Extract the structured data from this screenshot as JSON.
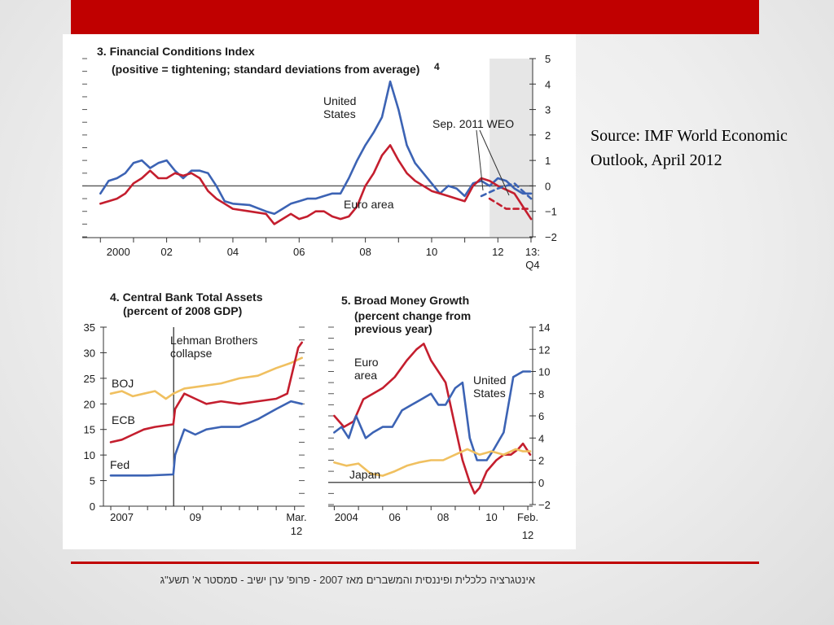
{
  "slide": {
    "source_caption": "Source: IMF World Economic Outlook, April 2012",
    "footer": "אינטגרציה כלכלית ופיננסית והמשברים מאז 2007 - פרופ' ערן ישיב - סמסטר א' תשע\"ג"
  },
  "colors": {
    "blue": "#3c63b4",
    "red": "#c41e2e",
    "yellow": "#f0c060",
    "accent_bar": "#c00000",
    "shade": "#e6e6e6"
  },
  "chart_data": [
    {
      "id": "fci",
      "type": "line",
      "title": "3. Financial Conditions Index",
      "subtitle": "(positive = tightening; standard deviations from average)",
      "footnote_mark": "4",
      "x_ticks": [
        "2000",
        "02",
        "04",
        "06",
        "08",
        "10",
        "12",
        "13:"
      ],
      "x_tick_sub": "Q4",
      "ylim": [
        -2,
        5
      ],
      "y_ticks": [
        "5",
        "4",
        "3",
        "2",
        "1",
        "0",
        "−1",
        "−2"
      ],
      "shaded_label": "Sep. 2011 WEO",
      "series": [
        {
          "name": "United States",
          "label": "United\nStates",
          "color": "blue",
          "style": "solid",
          "points": [
            [
              2000,
              -0.3
            ],
            [
              2000.25,
              0.2
            ],
            [
              2000.5,
              0.3
            ],
            [
              2000.75,
              0.5
            ],
            [
              2001,
              0.9
            ],
            [
              2001.25,
              1.0
            ],
            [
              2001.5,
              0.7
            ],
            [
              2001.75,
              0.9
            ],
            [
              2002,
              1.0
            ],
            [
              2002.25,
              0.6
            ],
            [
              2002.5,
              0.3
            ],
            [
              2002.75,
              0.6
            ],
            [
              2003,
              0.6
            ],
            [
              2003.25,
              0.5
            ],
            [
              2003.5,
              0.0
            ],
            [
              2003.75,
              -0.6
            ],
            [
              2004,
              -0.7
            ],
            [
              2004.5,
              -0.75
            ],
            [
              2005,
              -1.0
            ],
            [
              2005.25,
              -1.1
            ],
            [
              2005.5,
              -0.9
            ],
            [
              2005.75,
              -0.7
            ],
            [
              2006,
              -0.6
            ],
            [
              2006.25,
              -0.5
            ],
            [
              2006.5,
              -0.5
            ],
            [
              2006.75,
              -0.4
            ],
            [
              2007,
              -0.3
            ],
            [
              2007.25,
              -0.3
            ],
            [
              2007.5,
              0.3
            ],
            [
              2007.75,
              1.0
            ],
            [
              2008,
              1.6
            ],
            [
              2008.25,
              2.1
            ],
            [
              2008.5,
              2.7
            ],
            [
              2008.75,
              4.1
            ],
            [
              2009,
              3.0
            ],
            [
              2009.25,
              1.6
            ],
            [
              2009.5,
              0.9
            ],
            [
              2009.75,
              0.5
            ],
            [
              2010,
              0.1
            ],
            [
              2010.25,
              -0.3
            ],
            [
              2010.5,
              0.0
            ],
            [
              2010.75,
              -0.1
            ],
            [
              2011,
              -0.4
            ],
            [
              2011.25,
              0.1
            ],
            [
              2011.5,
              0.2
            ],
            [
              2011.75,
              0.0
            ],
            [
              2012,
              0.3
            ],
            [
              2012.25,
              0.2
            ],
            [
              2012.5,
              -0.1
            ],
            [
              2012.75,
              -0.3
            ],
            [
              2013,
              -0.3
            ]
          ]
        },
        {
          "name": "Euro area",
          "label": "Euro area",
          "color": "red",
          "style": "solid",
          "points": [
            [
              2000,
              -0.7
            ],
            [
              2000.25,
              -0.6
            ],
            [
              2000.5,
              -0.5
            ],
            [
              2000.75,
              -0.3
            ],
            [
              2001,
              0.1
            ],
            [
              2001.25,
              0.3
            ],
            [
              2001.5,
              0.6
            ],
            [
              2001.75,
              0.3
            ],
            [
              2002,
              0.3
            ],
            [
              2002.25,
              0.5
            ],
            [
              2002.5,
              0.4
            ],
            [
              2002.75,
              0.5
            ],
            [
              2003,
              0.3
            ],
            [
              2003.25,
              -0.2
            ],
            [
              2003.5,
              -0.5
            ],
            [
              2003.75,
              -0.7
            ],
            [
              2004,
              -0.9
            ],
            [
              2004.5,
              -1.0
            ],
            [
              2005,
              -1.1
            ],
            [
              2005.25,
              -1.5
            ],
            [
              2005.5,
              -1.3
            ],
            [
              2005.75,
              -1.1
            ],
            [
              2006,
              -1.3
            ],
            [
              2006.25,
              -1.2
            ],
            [
              2006.5,
              -1.0
            ],
            [
              2006.75,
              -1.0
            ],
            [
              2007,
              -1.2
            ],
            [
              2007.25,
              -1.3
            ],
            [
              2007.5,
              -1.2
            ],
            [
              2007.75,
              -0.8
            ],
            [
              2008,
              0.0
            ],
            [
              2008.25,
              0.5
            ],
            [
              2008.5,
              1.2
            ],
            [
              2008.75,
              1.6
            ],
            [
              2009,
              1.0
            ],
            [
              2009.25,
              0.5
            ],
            [
              2009.5,
              0.2
            ],
            [
              2009.75,
              0.0
            ],
            [
              2010,
              -0.2
            ],
            [
              2010.25,
              -0.3
            ],
            [
              2010.5,
              -0.4
            ],
            [
              2010.75,
              -0.5
            ],
            [
              2011,
              -0.6
            ],
            [
              2011.25,
              0.0
            ],
            [
              2011.5,
              0.3
            ],
            [
              2011.75,
              0.2
            ],
            [
              2012,
              0.0
            ],
            [
              2012.5,
              -0.3
            ],
            [
              2013,
              -1.3
            ]
          ]
        },
        {
          "name": "Sep. 2011 WEO (United States)",
          "color": "blue",
          "style": "dashed",
          "points": [
            [
              2011.5,
              -0.4
            ],
            [
              2012,
              -0.1
            ],
            [
              2012.5,
              0.1
            ],
            [
              2012.75,
              -0.2
            ],
            [
              2013,
              -0.5
            ]
          ]
        },
        {
          "name": "Sep. 2011 WEO (Euro area)",
          "color": "red",
          "style": "dashed",
          "points": [
            [
              2011.75,
              -0.5
            ],
            [
              2012,
              -0.7
            ],
            [
              2012.25,
              -0.9
            ],
            [
              2012.5,
              -0.9
            ],
            [
              2013,
              -0.9
            ]
          ]
        }
      ]
    },
    {
      "id": "cbassets",
      "type": "line",
      "title": "4. Central Bank Total Assets",
      "subtitle": "(percent of 2008 GDP)",
      "x_ticks": [
        "2007",
        "09",
        "Mar."
      ],
      "x_tick_sub": "12",
      "ylim": [
        0,
        35
      ],
      "y_ticks": [
        "35",
        "30",
        "25",
        "20",
        "15",
        "10",
        "5",
        "0"
      ],
      "event_label": "Lehman Brothers\ncollapse",
      "series": [
        {
          "name": "BOJ",
          "label": "BOJ",
          "color": "yellow",
          "points": [
            [
              2007,
              22
            ],
            [
              2007.3,
              22.5
            ],
            [
              2007.6,
              21.5
            ],
            [
              2007.9,
              22
            ],
            [
              2008.2,
              22.5
            ],
            [
              2008.5,
              21
            ],
            [
              2008.7,
              22
            ],
            [
              2009,
              23
            ],
            [
              2009.5,
              23.5
            ],
            [
              2010,
              24
            ],
            [
              2010.5,
              25
            ],
            [
              2011,
              25.5
            ],
            [
              2011.5,
              27
            ],
            [
              2011.9,
              28
            ],
            [
              2012.2,
              29
            ]
          ]
        },
        {
          "name": "ECB",
          "label": "ECB",
          "color": "red",
          "points": [
            [
              2007,
              12.5
            ],
            [
              2007.3,
              13
            ],
            [
              2007.6,
              14
            ],
            [
              2007.9,
              15
            ],
            [
              2008.2,
              15.5
            ],
            [
              2008.7,
              16
            ],
            [
              2008.75,
              19
            ],
            [
              2009,
              22
            ],
            [
              2009.3,
              21
            ],
            [
              2009.6,
              20
            ],
            [
              2010,
              20.5
            ],
            [
              2010.5,
              20
            ],
            [
              2011,
              20.5
            ],
            [
              2011.5,
              21
            ],
            [
              2011.8,
              22
            ],
            [
              2012.1,
              31
            ],
            [
              2012.2,
              32
            ]
          ]
        },
        {
          "name": "Fed",
          "label": "Fed",
          "color": "blue",
          "points": [
            [
              2007,
              6
            ],
            [
              2007.5,
              6
            ],
            [
              2008,
              6
            ],
            [
              2008.7,
              6.2
            ],
            [
              2008.75,
              10
            ],
            [
              2009,
              15
            ],
            [
              2009.3,
              14
            ],
            [
              2009.6,
              15
            ],
            [
              2010,
              15.5
            ],
            [
              2010.5,
              15.5
            ],
            [
              2011,
              17
            ],
            [
              2011.5,
              19
            ],
            [
              2011.9,
              20.5
            ],
            [
              2012.2,
              20
            ]
          ]
        }
      ]
    },
    {
      "id": "moneygrowth",
      "type": "line",
      "title": "5. Broad Money Growth",
      "subtitle": "(percent change from\nprevious year)",
      "x_ticks": [
        "2004",
        "06",
        "08",
        "10",
        "Feb."
      ],
      "x_tick_sub": "12",
      "ylim": [
        -2,
        14
      ],
      "y_ticks": [
        "14",
        "12",
        "10",
        "8",
        "6",
        "4",
        "2",
        "0",
        "−2"
      ],
      "series": [
        {
          "name": "Euro area",
          "label": "Euro\narea",
          "color": "red",
          "points": [
            [
              2004,
              6
            ],
            [
              2004.4,
              5
            ],
            [
              2004.8,
              5.5
            ],
            [
              2005.2,
              7.5
            ],
            [
              2005.6,
              8
            ],
            [
              2006,
              8.5
            ],
            [
              2006.5,
              9.5
            ],
            [
              2007,
              11
            ],
            [
              2007.4,
              12
            ],
            [
              2007.7,
              12.5
            ],
            [
              2008,
              11
            ],
            [
              2008.3,
              10
            ],
            [
              2008.6,
              9
            ],
            [
              2009,
              5
            ],
            [
              2009.3,
              2
            ],
            [
              2009.6,
              0
            ],
            [
              2009.8,
              -1
            ],
            [
              2010,
              -0.5
            ],
            [
              2010.3,
              1
            ],
            [
              2010.7,
              2
            ],
            [
              2011,
              2.5
            ],
            [
              2011.3,
              2.5
            ],
            [
              2011.6,
              3
            ],
            [
              2011.8,
              3.5
            ],
            [
              2012.1,
              2.5
            ]
          ]
        },
        {
          "name": "United States",
          "label": "United\nStates",
          "color": "blue",
          "points": [
            [
              2004,
              4.5
            ],
            [
              2004.3,
              5
            ],
            [
              2004.6,
              4
            ],
            [
              2004.9,
              6
            ],
            [
              2005.3,
              4
            ],
            [
              2005.6,
              4.5
            ],
            [
              2006,
              5
            ],
            [
              2006.4,
              5
            ],
            [
              2006.8,
              6.5
            ],
            [
              2007.2,
              7
            ],
            [
              2007.6,
              7.5
            ],
            [
              2008,
              8
            ],
            [
              2008.3,
              7
            ],
            [
              2008.6,
              7
            ],
            [
              2009,
              8.5
            ],
            [
              2009.3,
              9
            ],
            [
              2009.6,
              4
            ],
            [
              2009.9,
              2
            ],
            [
              2010.3,
              2
            ],
            [
              2010.6,
              3
            ],
            [
              2011,
              4.5
            ],
            [
              2011.4,
              9.5
            ],
            [
              2011.8,
              10
            ],
            [
              2012.1,
              10
            ]
          ]
        },
        {
          "name": "Japan",
          "label": "Japan",
          "color": "yellow",
          "points": [
            [
              2004,
              1.8
            ],
            [
              2004.5,
              1.5
            ],
            [
              2005,
              1.7
            ],
            [
              2005.5,
              0.8
            ],
            [
              2006,
              0.6
            ],
            [
              2006.5,
              1
            ],
            [
              2007,
              1.5
            ],
            [
              2007.5,
              1.8
            ],
            [
              2008,
              2
            ],
            [
              2008.5,
              2
            ],
            [
              2009,
              2.5
            ],
            [
              2009.5,
              3
            ],
            [
              2010,
              2.5
            ],
            [
              2010.5,
              2.8
            ],
            [
              2011,
              2.5
            ],
            [
              2011.5,
              3
            ],
            [
              2011.8,
              2.8
            ],
            [
              2012.1,
              2.8
            ]
          ]
        }
      ]
    }
  ]
}
